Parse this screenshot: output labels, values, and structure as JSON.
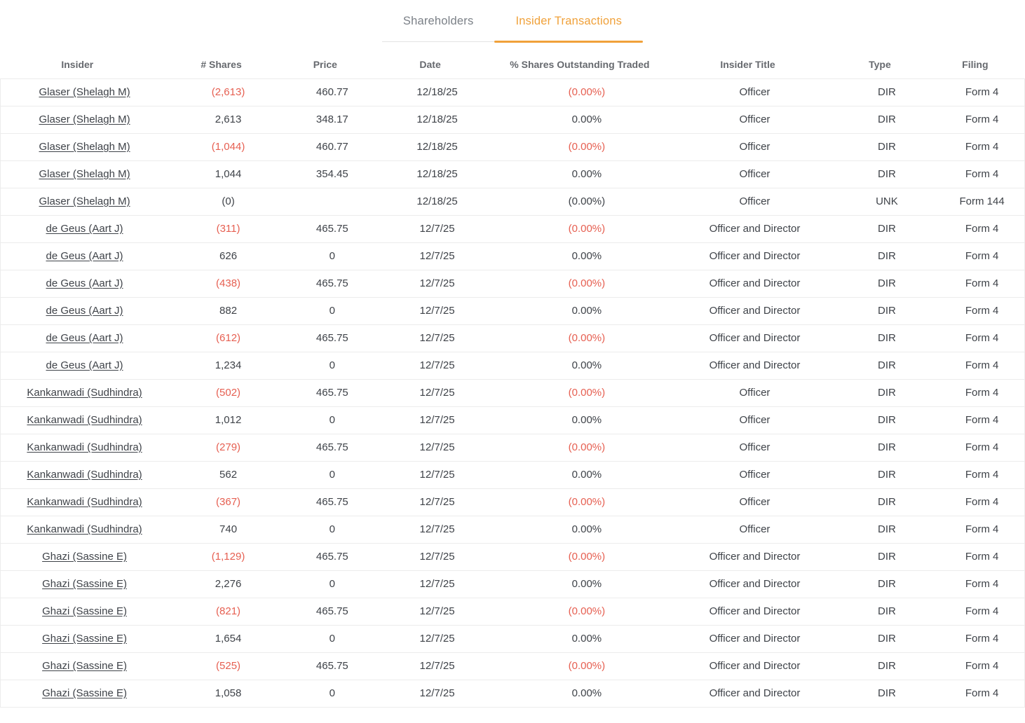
{
  "colors": {
    "accent": "#F0A13A",
    "negative": "#E65F51"
  },
  "tabs": [
    {
      "label": "Shareholders",
      "active": false
    },
    {
      "label": "Insider Transactions",
      "active": true
    }
  ],
  "table": {
    "columns": [
      {
        "key": "insider",
        "label": "Insider"
      },
      {
        "key": "shares",
        "label": "# Shares"
      },
      {
        "key": "price",
        "label": "Price"
      },
      {
        "key": "date",
        "label": "Date"
      },
      {
        "key": "pct",
        "label": "% Shares Outstanding Traded"
      },
      {
        "key": "title",
        "label": "Insider Title"
      },
      {
        "key": "type",
        "label": "Type"
      },
      {
        "key": "filing",
        "label": "Filing"
      }
    ],
    "col_widths": [
      "16.4%",
      "11.7%",
      "8.6%",
      "11.9%",
      "17.3%",
      "15.5%",
      "10.3%",
      "8.3%"
    ],
    "rows": [
      {
        "insider": "Glaser (Shelagh M)",
        "shares": "(2,613)",
        "price": "460.77",
        "date": "12/18/25",
        "pct": "(0.00%)",
        "title": "Officer",
        "type": "DIR",
        "filing": "Form 4",
        "neg": true
      },
      {
        "insider": "Glaser (Shelagh M)",
        "shares": "2,613",
        "price": "348.17",
        "date": "12/18/25",
        "pct": "0.00%",
        "title": "Officer",
        "type": "DIR",
        "filing": "Form 4",
        "neg": false
      },
      {
        "insider": "Glaser (Shelagh M)",
        "shares": "(1,044)",
        "price": "460.77",
        "date": "12/18/25",
        "pct": "(0.00%)",
        "title": "Officer",
        "type": "DIR",
        "filing": "Form 4",
        "neg": true
      },
      {
        "insider": "Glaser (Shelagh M)",
        "shares": "1,044",
        "price": "354.45",
        "date": "12/18/25",
        "pct": "0.00%",
        "title": "Officer",
        "type": "DIR",
        "filing": "Form 4",
        "neg": false
      },
      {
        "insider": "Glaser (Shelagh M)",
        "shares": "(0)",
        "price": "",
        "date": "12/18/25",
        "pct": "(0.00%)",
        "title": "Officer",
        "type": "UNK",
        "filing": "Form 144",
        "neg": false
      },
      {
        "insider": "de Geus (Aart J)",
        "shares": "(311)",
        "price": "465.75",
        "date": "12/7/25",
        "pct": "(0.00%)",
        "title": "Officer and Director",
        "type": "DIR",
        "filing": "Form 4",
        "neg": true
      },
      {
        "insider": "de Geus (Aart J)",
        "shares": "626",
        "price": "0",
        "date": "12/7/25",
        "pct": "0.00%",
        "title": "Officer and Director",
        "type": "DIR",
        "filing": "Form 4",
        "neg": false
      },
      {
        "insider": "de Geus (Aart J)",
        "shares": "(438)",
        "price": "465.75",
        "date": "12/7/25",
        "pct": "(0.00%)",
        "title": "Officer and Director",
        "type": "DIR",
        "filing": "Form 4",
        "neg": true
      },
      {
        "insider": "de Geus (Aart J)",
        "shares": "882",
        "price": "0",
        "date": "12/7/25",
        "pct": "0.00%",
        "title": "Officer and Director",
        "type": "DIR",
        "filing": "Form 4",
        "neg": false
      },
      {
        "insider": "de Geus (Aart J)",
        "shares": "(612)",
        "price": "465.75",
        "date": "12/7/25",
        "pct": "(0.00%)",
        "title": "Officer and Director",
        "type": "DIR",
        "filing": "Form 4",
        "neg": true
      },
      {
        "insider": "de Geus (Aart J)",
        "shares": "1,234",
        "price": "0",
        "date": "12/7/25",
        "pct": "0.00%",
        "title": "Officer and Director",
        "type": "DIR",
        "filing": "Form 4",
        "neg": false
      },
      {
        "insider": "Kankanwadi (Sudhindra)",
        "shares": "(502)",
        "price": "465.75",
        "date": "12/7/25",
        "pct": "(0.00%)",
        "title": "Officer",
        "type": "DIR",
        "filing": "Form 4",
        "neg": true
      },
      {
        "insider": "Kankanwadi (Sudhindra)",
        "shares": "1,012",
        "price": "0",
        "date": "12/7/25",
        "pct": "0.00%",
        "title": "Officer",
        "type": "DIR",
        "filing": "Form 4",
        "neg": false
      },
      {
        "insider": "Kankanwadi (Sudhindra)",
        "shares": "(279)",
        "price": "465.75",
        "date": "12/7/25",
        "pct": "(0.00%)",
        "title": "Officer",
        "type": "DIR",
        "filing": "Form 4",
        "neg": true
      },
      {
        "insider": "Kankanwadi (Sudhindra)",
        "shares": "562",
        "price": "0",
        "date": "12/7/25",
        "pct": "0.00%",
        "title": "Officer",
        "type": "DIR",
        "filing": "Form 4",
        "neg": false
      },
      {
        "insider": "Kankanwadi (Sudhindra)",
        "shares": "(367)",
        "price": "465.75",
        "date": "12/7/25",
        "pct": "(0.00%)",
        "title": "Officer",
        "type": "DIR",
        "filing": "Form 4",
        "neg": true
      },
      {
        "insider": "Kankanwadi (Sudhindra)",
        "shares": "740",
        "price": "0",
        "date": "12/7/25",
        "pct": "0.00%",
        "title": "Officer",
        "type": "DIR",
        "filing": "Form 4",
        "neg": false
      },
      {
        "insider": "Ghazi (Sassine E)",
        "shares": "(1,129)",
        "price": "465.75",
        "date": "12/7/25",
        "pct": "(0.00%)",
        "title": "Officer and Director",
        "type": "DIR",
        "filing": "Form 4",
        "neg": true
      },
      {
        "insider": "Ghazi (Sassine E)",
        "shares": "2,276",
        "price": "0",
        "date": "12/7/25",
        "pct": "0.00%",
        "title": "Officer and Director",
        "type": "DIR",
        "filing": "Form 4",
        "neg": false
      },
      {
        "insider": "Ghazi (Sassine E)",
        "shares": "(821)",
        "price": "465.75",
        "date": "12/7/25",
        "pct": "(0.00%)",
        "title": "Officer and Director",
        "type": "DIR",
        "filing": "Form 4",
        "neg": true
      },
      {
        "insider": "Ghazi (Sassine E)",
        "shares": "1,654",
        "price": "0",
        "date": "12/7/25",
        "pct": "0.00%",
        "title": "Officer and Director",
        "type": "DIR",
        "filing": "Form 4",
        "neg": false
      },
      {
        "insider": "Ghazi (Sassine E)",
        "shares": "(525)",
        "price": "465.75",
        "date": "12/7/25",
        "pct": "(0.00%)",
        "title": "Officer and Director",
        "type": "DIR",
        "filing": "Form 4",
        "neg": true
      },
      {
        "insider": "Ghazi (Sassine E)",
        "shares": "1,058",
        "price": "0",
        "date": "12/7/25",
        "pct": "0.00%",
        "title": "Officer and Director",
        "type": "DIR",
        "filing": "Form 4",
        "neg": false
      }
    ]
  }
}
